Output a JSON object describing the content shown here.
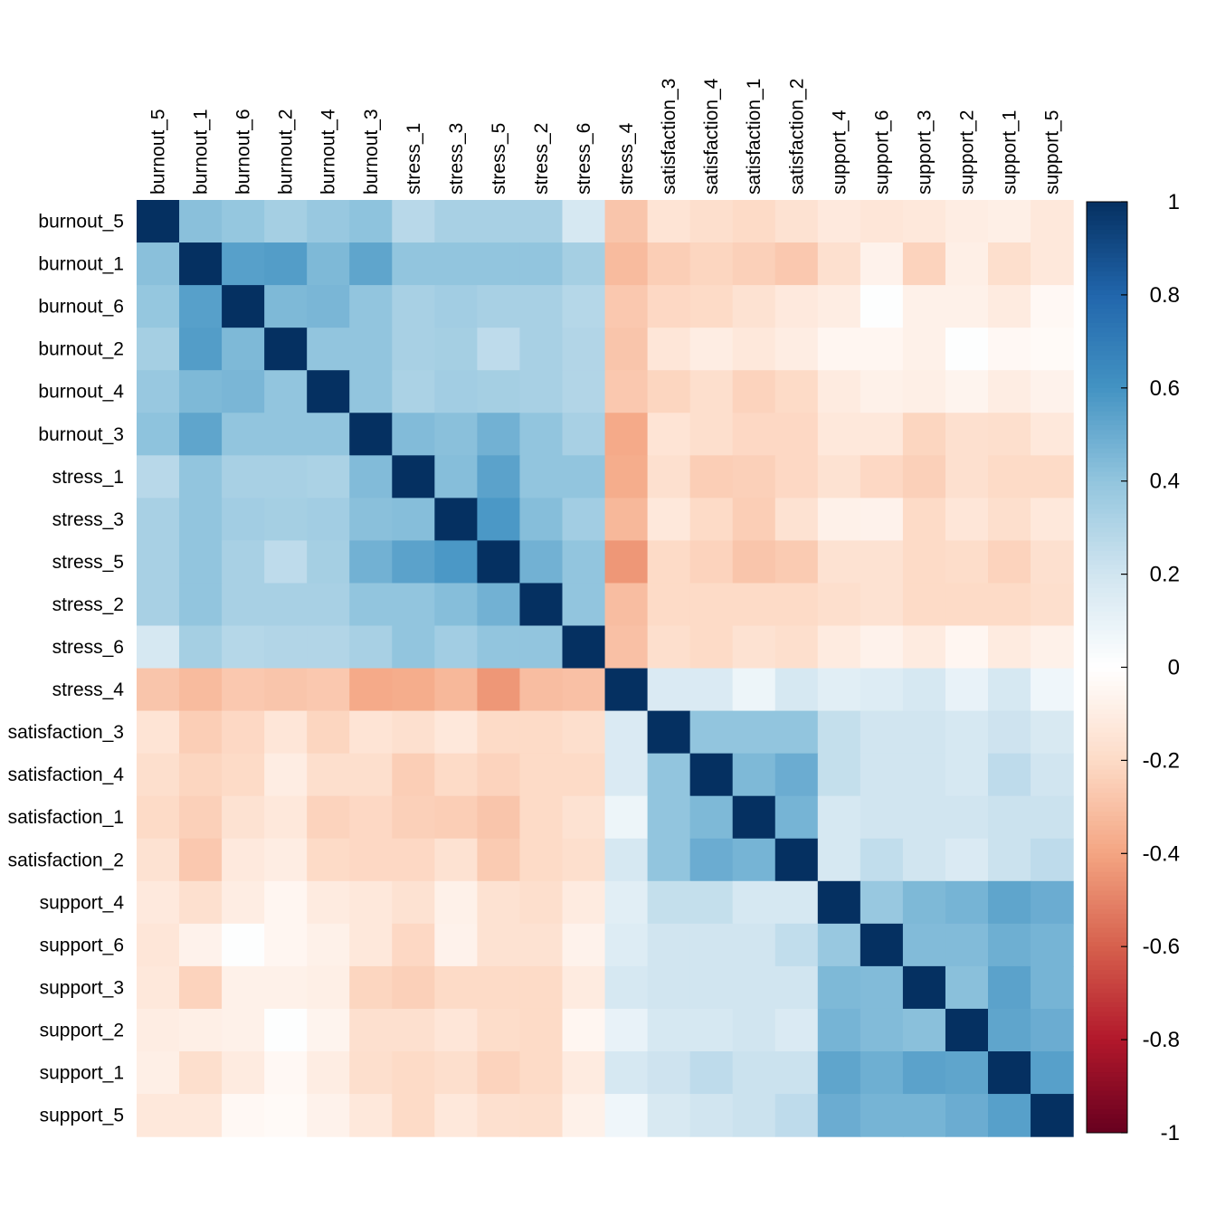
{
  "chart_data": {
    "type": "heatmap",
    "title": "",
    "xlabel": "",
    "ylabel": "",
    "variables": [
      "burnout_5",
      "burnout_1",
      "burnout_6",
      "burnout_2",
      "burnout_4",
      "burnout_3",
      "stress_1",
      "stress_3",
      "stress_5",
      "stress_2",
      "stress_6",
      "stress_4",
      "satisfaction_3",
      "satisfaction_4",
      "satisfaction_1",
      "satisfaction_2",
      "support_4",
      "support_6",
      "support_3",
      "support_2",
      "support_1",
      "support_5"
    ],
    "matrix": [
      [
        1.0,
        0.42,
        0.39,
        0.34,
        0.38,
        0.41,
        0.28,
        0.33,
        0.33,
        0.33,
        0.18,
        -0.28,
        -0.15,
        -0.18,
        -0.2,
        -0.16,
        -0.12,
        -0.14,
        -0.13,
        -0.1,
        -0.09,
        -0.13
      ],
      [
        0.42,
        1.0,
        0.55,
        0.56,
        0.45,
        0.53,
        0.4,
        0.4,
        0.4,
        0.4,
        0.34,
        -0.32,
        -0.25,
        -0.22,
        -0.24,
        -0.27,
        -0.17,
        -0.07,
        -0.23,
        -0.09,
        -0.18,
        -0.13
      ],
      [
        0.39,
        0.55,
        1.0,
        0.45,
        0.46,
        0.4,
        0.33,
        0.35,
        0.33,
        0.33,
        0.29,
        -0.27,
        -0.21,
        -0.2,
        -0.16,
        -0.12,
        -0.1,
        0.01,
        -0.08,
        -0.08,
        -0.11,
        -0.04
      ],
      [
        0.34,
        0.56,
        0.45,
        1.0,
        0.4,
        0.4,
        0.33,
        0.34,
        0.26,
        0.33,
        0.3,
        -0.28,
        -0.14,
        -0.1,
        -0.13,
        -0.1,
        -0.05,
        -0.05,
        -0.08,
        0.01,
        -0.04,
        -0.03
      ],
      [
        0.38,
        0.45,
        0.46,
        0.4,
        1.0,
        0.4,
        0.32,
        0.35,
        0.34,
        0.33,
        0.3,
        -0.27,
        -0.22,
        -0.18,
        -0.23,
        -0.2,
        -0.11,
        -0.08,
        -0.09,
        -0.06,
        -0.1,
        -0.07
      ],
      [
        0.41,
        0.53,
        0.4,
        0.4,
        0.4,
        1.0,
        0.44,
        0.42,
        0.48,
        0.4,
        0.33,
        -0.38,
        -0.15,
        -0.18,
        -0.21,
        -0.21,
        -0.13,
        -0.13,
        -0.22,
        -0.17,
        -0.18,
        -0.13
      ],
      [
        0.28,
        0.4,
        0.33,
        0.33,
        0.32,
        0.44,
        1.0,
        0.43,
        0.54,
        0.4,
        0.4,
        -0.37,
        -0.17,
        -0.25,
        -0.24,
        -0.21,
        -0.16,
        -0.21,
        -0.24,
        -0.17,
        -0.2,
        -0.2
      ],
      [
        0.33,
        0.4,
        0.35,
        0.34,
        0.35,
        0.42,
        0.43,
        1.0,
        0.58,
        0.43,
        0.35,
        -0.33,
        -0.13,
        -0.2,
        -0.25,
        -0.16,
        -0.08,
        -0.07,
        -0.2,
        -0.14,
        -0.18,
        -0.13
      ],
      [
        0.33,
        0.4,
        0.33,
        0.26,
        0.34,
        0.48,
        0.54,
        0.58,
        1.0,
        0.48,
        0.4,
        -0.44,
        -0.2,
        -0.23,
        -0.28,
        -0.26,
        -0.16,
        -0.16,
        -0.2,
        -0.19,
        -0.23,
        -0.17
      ],
      [
        0.33,
        0.4,
        0.33,
        0.33,
        0.33,
        0.4,
        0.4,
        0.43,
        0.48,
        1.0,
        0.4,
        -0.31,
        -0.2,
        -0.2,
        -0.2,
        -0.2,
        -0.18,
        -0.16,
        -0.2,
        -0.2,
        -0.2,
        -0.18
      ],
      [
        0.18,
        0.34,
        0.29,
        0.3,
        0.3,
        0.33,
        0.4,
        0.35,
        0.4,
        0.4,
        1.0,
        -0.3,
        -0.18,
        -0.2,
        -0.16,
        -0.18,
        -0.11,
        -0.07,
        -0.11,
        -0.05,
        -0.11,
        -0.08
      ],
      [
        -0.28,
        -0.32,
        -0.27,
        -0.28,
        -0.27,
        -0.38,
        -0.37,
        -0.33,
        -0.44,
        -0.31,
        -0.3,
        1.0,
        0.16,
        0.16,
        0.08,
        0.18,
        0.13,
        0.15,
        0.18,
        0.1,
        0.18,
        0.07
      ],
      [
        -0.15,
        -0.25,
        -0.21,
        -0.14,
        -0.22,
        -0.15,
        -0.17,
        -0.13,
        -0.2,
        -0.2,
        -0.18,
        0.16,
        1.0,
        0.4,
        0.4,
        0.4,
        0.24,
        0.2,
        0.2,
        0.18,
        0.21,
        0.17
      ],
      [
        -0.18,
        -0.22,
        -0.2,
        -0.1,
        -0.18,
        -0.18,
        -0.25,
        -0.2,
        -0.23,
        -0.2,
        -0.2,
        0.16,
        0.4,
        1.0,
        0.45,
        0.5,
        0.24,
        0.2,
        0.2,
        0.18,
        0.26,
        0.2
      ],
      [
        -0.2,
        -0.24,
        -0.16,
        -0.13,
        -0.23,
        -0.21,
        -0.24,
        -0.25,
        -0.28,
        -0.2,
        -0.16,
        0.08,
        0.4,
        0.45,
        1.0,
        0.47,
        0.18,
        0.2,
        0.2,
        0.2,
        0.22,
        0.22
      ],
      [
        -0.16,
        -0.27,
        -0.12,
        -0.1,
        -0.2,
        -0.21,
        -0.21,
        -0.16,
        -0.26,
        -0.2,
        -0.18,
        0.18,
        0.4,
        0.5,
        0.47,
        1.0,
        0.18,
        0.25,
        0.2,
        0.16,
        0.22,
        0.26
      ],
      [
        -0.12,
        -0.17,
        -0.1,
        -0.05,
        -0.11,
        -0.13,
        -0.16,
        -0.08,
        -0.16,
        -0.18,
        -0.11,
        0.13,
        0.24,
        0.24,
        0.18,
        0.18,
        1.0,
        0.38,
        0.45,
        0.47,
        0.53,
        0.5
      ],
      [
        -0.14,
        -0.07,
        0.01,
        -0.05,
        -0.08,
        -0.13,
        -0.21,
        -0.07,
        -0.16,
        -0.16,
        -0.07,
        0.15,
        0.2,
        0.2,
        0.2,
        0.25,
        0.38,
        1.0,
        0.44,
        0.44,
        0.49,
        0.47
      ],
      [
        -0.13,
        -0.23,
        -0.08,
        -0.08,
        -0.09,
        -0.22,
        -0.24,
        -0.2,
        -0.2,
        -0.2,
        -0.11,
        0.18,
        0.2,
        0.2,
        0.2,
        0.2,
        0.45,
        0.44,
        1.0,
        0.42,
        0.54,
        0.47
      ],
      [
        -0.1,
        -0.09,
        -0.08,
        0.01,
        -0.06,
        -0.17,
        -0.17,
        -0.14,
        -0.19,
        -0.2,
        -0.05,
        0.1,
        0.18,
        0.18,
        0.2,
        0.16,
        0.47,
        0.44,
        0.42,
        1.0,
        0.53,
        0.5
      ],
      [
        -0.09,
        -0.18,
        -0.11,
        -0.04,
        -0.1,
        -0.18,
        -0.2,
        -0.18,
        -0.23,
        -0.2,
        -0.11,
        0.18,
        0.21,
        0.26,
        0.22,
        0.22,
        0.53,
        0.49,
        0.54,
        0.53,
        1.0,
        0.55
      ],
      [
        -0.13,
        -0.13,
        -0.04,
        -0.03,
        -0.07,
        -0.13,
        -0.2,
        -0.13,
        -0.17,
        -0.18,
        -0.08,
        0.07,
        0.17,
        0.2,
        0.22,
        0.26,
        0.5,
        0.47,
        0.47,
        0.5,
        0.55,
        1.0
      ]
    ],
    "colorbar": {
      "min": -1,
      "max": 1,
      "ticks": [
        "1",
        "0.8",
        "0.6",
        "0.4",
        "0.2",
        "0",
        "-0.2",
        "-0.4",
        "-0.6",
        "-0.8",
        "-1"
      ],
      "palette": [
        "#67001F",
        "#B2182B",
        "#D6604D",
        "#F4A582",
        "#FDDBC7",
        "#FFFFFF",
        "#D1E5F0",
        "#92C5DE",
        "#4393C3",
        "#2166AC",
        "#053061"
      ]
    },
    "legend_position": "right"
  }
}
